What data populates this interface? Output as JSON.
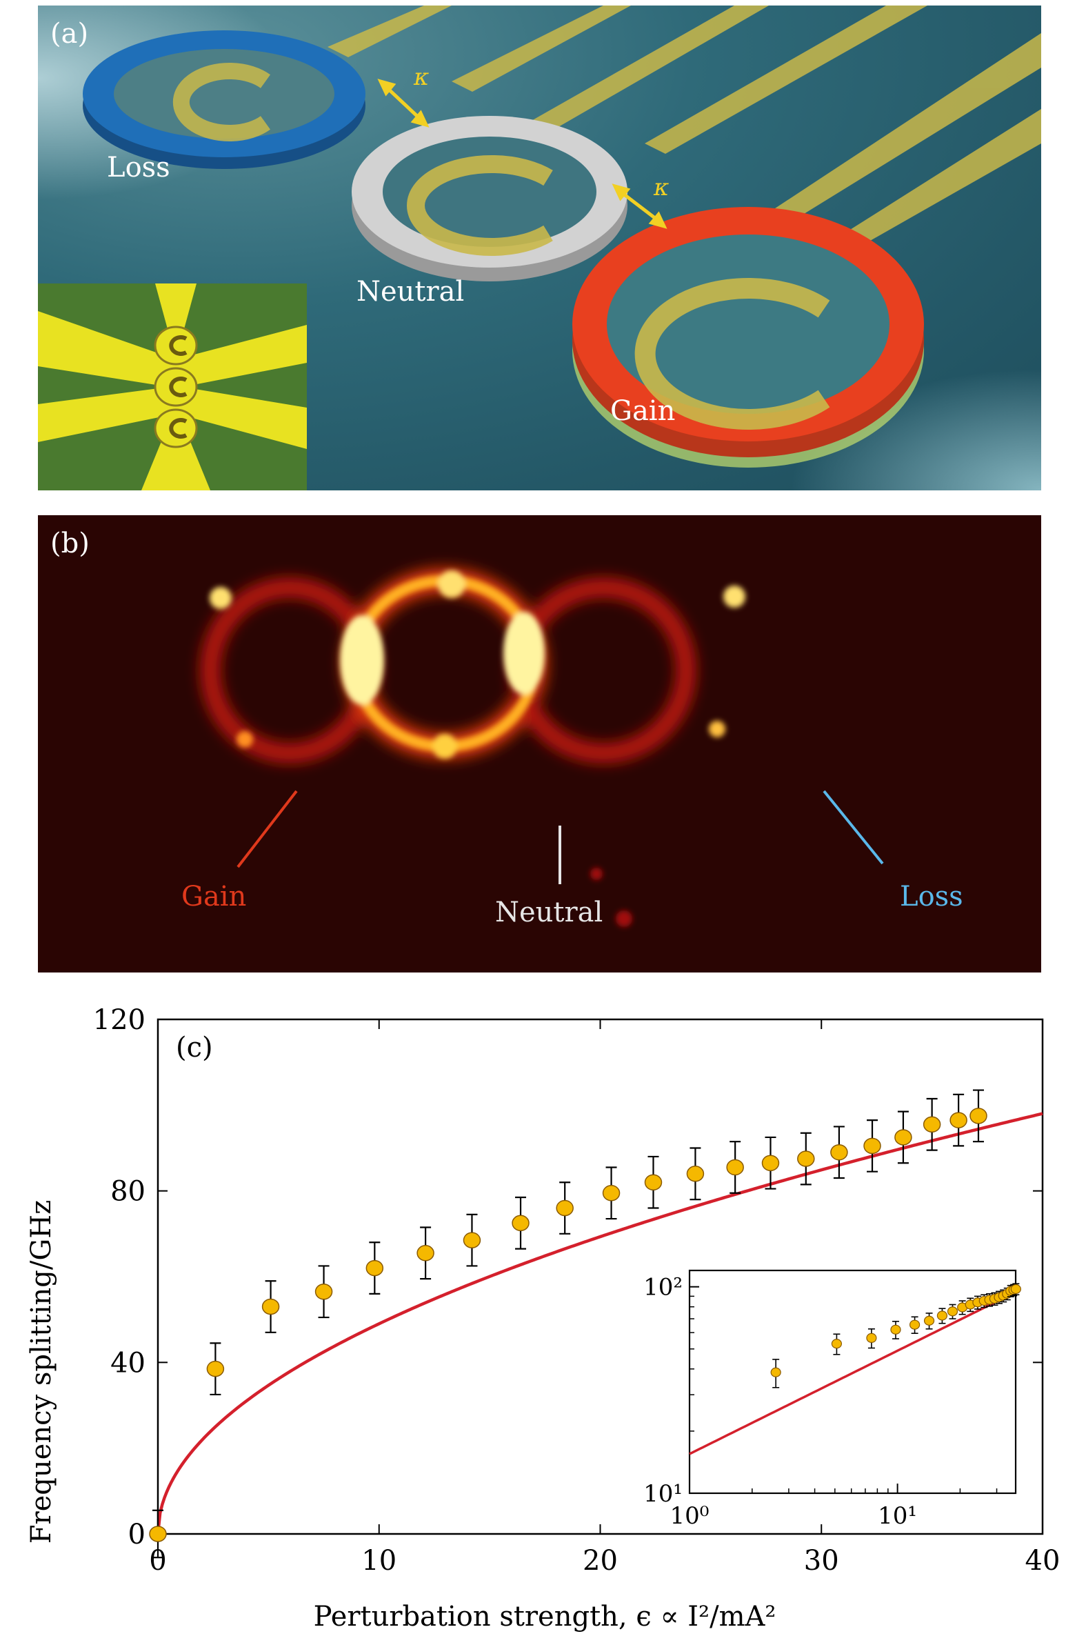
{
  "panel_a": {
    "label": "(a)",
    "rings": [
      {
        "name": "Loss",
        "color": "#1f6fb8"
      },
      {
        "name": "Neutral",
        "color": "#cfcfcf"
      },
      {
        "name": "Gain",
        "color": "#e8401f"
      }
    ],
    "coupling_symbol": "κ",
    "colors": {
      "gold": "#c9b84a",
      "arrow": "#f2d024"
    }
  },
  "panel_b": {
    "label": "(b)",
    "labels": {
      "gain": "Gain",
      "neutral": "Neutral",
      "loss": "Loss"
    },
    "colors": {
      "gain": "#e0391c",
      "neutral": "#e6e6e6",
      "loss": "#5ab8ea"
    }
  },
  "chart_data": [
    {
      "type": "scatter",
      "label": "(c)",
      "xlabel": "Perturbation strength, ϵ ∝ I²/mA²",
      "ylabel": "Frequency splitting/GHz",
      "xlim": [
        0,
        40
      ],
      "ylim": [
        0,
        120
      ],
      "xticks": [
        0,
        10,
        20,
        30,
        40
      ],
      "yticks": [
        0,
        40,
        80,
        120
      ],
      "x": [
        0,
        2.6,
        5.1,
        7.5,
        9.8,
        12.1,
        14.2,
        16.4,
        18.4,
        20.5,
        22.4,
        24.3,
        26.1,
        27.7,
        29.3,
        30.8,
        32.3,
        33.7,
        35.0,
        36.2,
        37.1
      ],
      "y": [
        0,
        38.5,
        53,
        56.5,
        62,
        65.5,
        68.5,
        72.5,
        76,
        79.5,
        82,
        84,
        85.5,
        86.5,
        87.5,
        89,
        90.5,
        92.5,
        95.5,
        96.5,
        97.5
      ],
      "yerr": [
        5.5,
        6,
        6,
        6,
        6,
        6,
        6,
        6,
        6,
        6,
        6,
        6,
        6,
        6,
        6,
        6,
        6,
        6,
        6,
        6,
        6
      ],
      "fit": {
        "model": "power",
        "coefficient": 15.5,
        "exponent": 0.5
      },
      "colors": {
        "marker": "#f5b800",
        "fit": "#d4202c",
        "errorbar": "#000000"
      }
    },
    {
      "type": "scatter",
      "name": "inset",
      "scale": "log-log",
      "xlim": [
        1,
        37
      ],
      "ylim": [
        10,
        120
      ],
      "xticks": [
        "10⁰",
        "10¹"
      ],
      "yticks": [
        "10¹",
        "10²"
      ]
    }
  ]
}
